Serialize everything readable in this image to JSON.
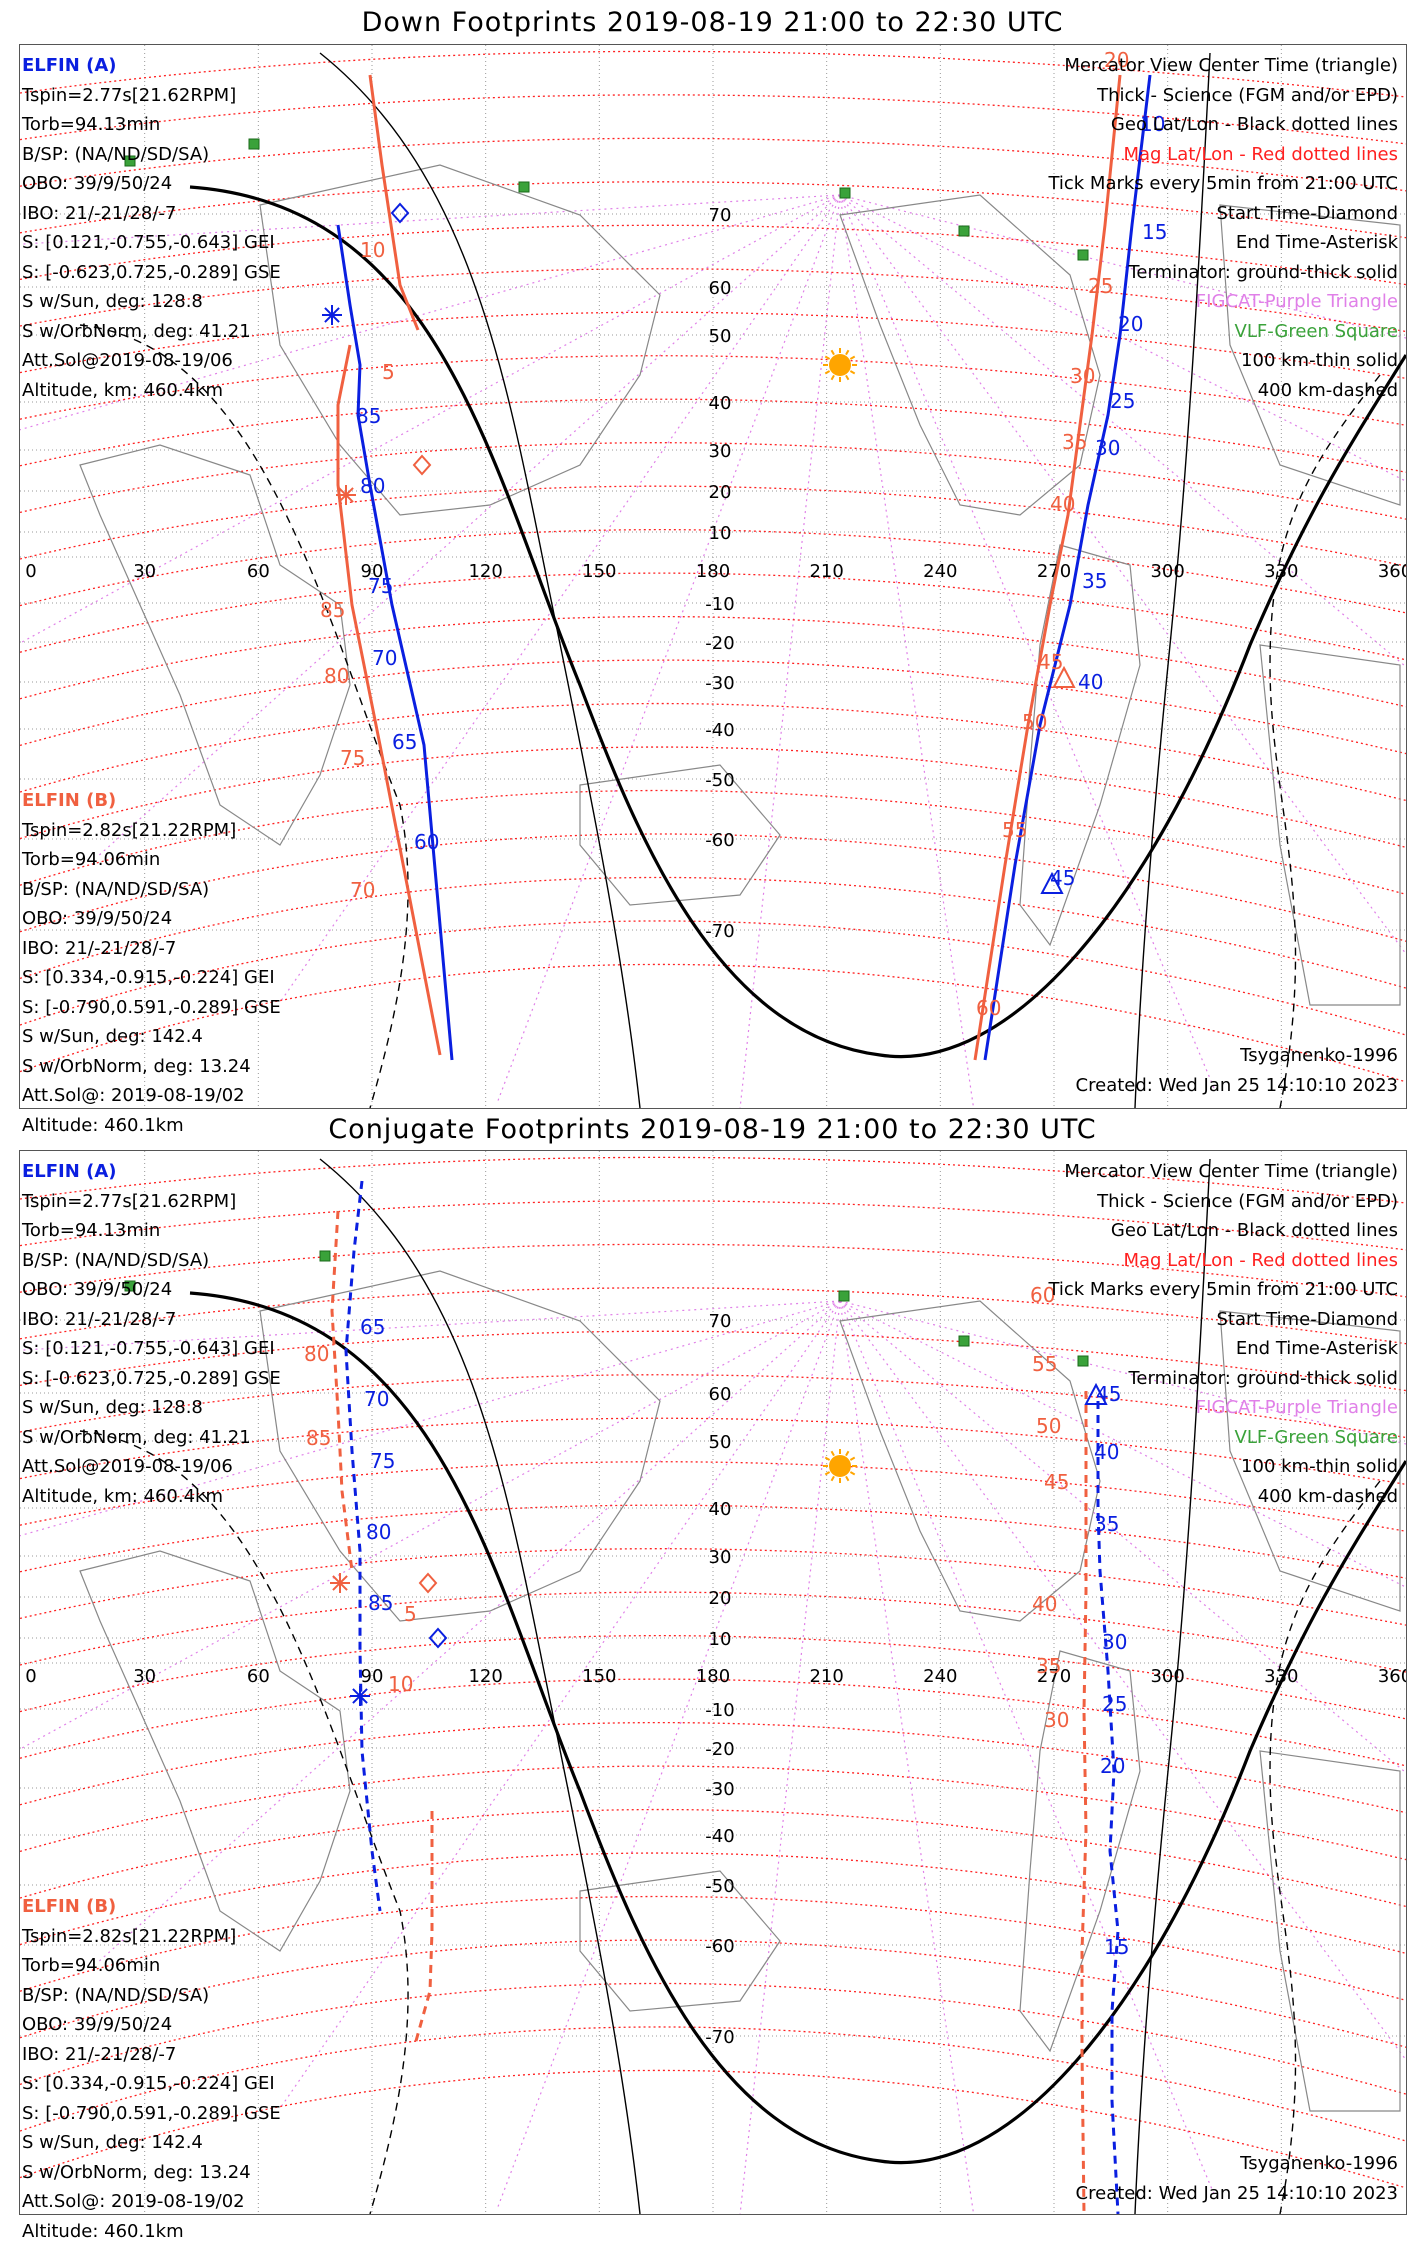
{
  "panels": [
    {
      "title": "Down Footprints 2019-08-19 21:00 to 22:30 UTC",
      "elfin_a": [
        "ELFIN (A)",
        "Tspin=2.77s[21.62RPM]",
        "Torb=94.13min",
        "B/SP: (NA/ND/SD/SA)",
        "OBO: 39/9/50/24",
        "IBO: 21/-21/28/-7",
        "S: [0.121,-0.755,-0.643] GEI",
        "S: [-0.623,0.725,-0.289] GSE",
        "S w/Sun, deg: 128.8",
        "S w/OrbNorm, deg: 41.21",
        "Att.Sol@2019-08-19/06",
        "Altitude, km: 460.4km"
      ],
      "elfin_b": [
        "ELFIN (B)",
        "Tspin=2.82s[21.22RPM]",
        "Torb=94.06min",
        "B/SP: (NA/ND/SD/SA)",
        "OBO: 39/9/50/24",
        "IBO: 21/-21/28/-7",
        "S: [0.334,-0.915,-0.224] GEI",
        "S: [-0.790,0.591,-0.289] GSE",
        "S w/Sun, deg: 142.4",
        "S w/OrbNorm, deg: 13.24",
        "Att.Sol@: 2019-08-19/02",
        "Altitude: 460.1km"
      ],
      "legend": [
        "Mercator View Center Time (triangle)",
        "Thick - Science (FGM and/or EPD)",
        "Geo Lat/Lon - Black dotted lines",
        "Mag Lat/Lon - Red dotted lines",
        "Tick Marks every 5min from 21:00 UTC",
        "Start Time-Diamond",
        "End Time-Asterisk",
        "Terminator: ground-thick solid",
        "FIGCAT-Purple Triangle",
        "VLF-Green Square",
        "100 km-thin solid",
        "400 km-dashed"
      ],
      "model": "Tsyganenko-1996",
      "created": "Created: Wed Jan 25 14:10:10 2023",
      "lon_labels": [
        "0",
        "30",
        "60",
        "90",
        "120",
        "150",
        "180",
        "210",
        "240",
        "270",
        "300",
        "330",
        "360"
      ],
      "lat_labels": [
        "70",
        "60",
        "50",
        "40",
        "30",
        "20",
        "10",
        "-10",
        "-20",
        "-30",
        "-40",
        "-50",
        "-60",
        "-70"
      ],
      "track_a_labels": [
        "10",
        "15",
        "20",
        "25",
        "30",
        "35",
        "40",
        "45",
        "60",
        "65",
        "70",
        "75",
        "80",
        "85"
      ],
      "track_b_labels": [
        "20",
        "25",
        "30",
        "35",
        "40",
        "45",
        "50",
        "55",
        "60",
        "5",
        "10",
        "70",
        "75",
        "80",
        "85"
      ]
    },
    {
      "title": "Conjugate Footprints 2019-08-19 21:00 to 22:30 UTC",
      "elfin_a": [
        "ELFIN (A)",
        "Tspin=2.77s[21.62RPM]",
        "Torb=94.13min",
        "B/SP: (NA/ND/SD/SA)",
        "OBO: 39/9/50/24",
        "IBO: 21/-21/28/-7",
        "S: [0.121,-0.755,-0.643] GEI",
        "S: [-0.623,0.725,-0.289] GSE",
        "S w/Sun, deg: 128.8",
        "S w/OrbNorm, deg: 41.21",
        "Att.Sol@2019-08-19/06",
        "Altitude, km: 460.4km"
      ],
      "elfin_b": [
        "ELFIN (B)",
        "Tspin=2.82s[21.22RPM]",
        "Torb=94.06min",
        "B/SP: (NA/ND/SD/SA)",
        "OBO: 39/9/50/24",
        "IBO: 21/-21/28/-7",
        "S: [0.334,-0.915,-0.224] GEI",
        "S: [-0.790,0.591,-0.289] GSE",
        "S w/Sun, deg: 142.4",
        "S w/OrbNorm, deg: 13.24",
        "Att.Sol@: 2019-08-19/02",
        "Altitude: 460.1km"
      ],
      "legend": [
        "Mercator View Center Time (triangle)",
        "Thick - Science (FGM and/or EPD)",
        "Geo Lat/Lon - Black dotted lines",
        "Mag Lat/Lon - Red dotted lines",
        "Tick Marks every 5min from 21:00 UTC",
        "Start Time-Diamond",
        "End Time-Asterisk",
        "Terminator: ground-thick solid",
        "FIGCAT-Purple Triangle",
        "VLF-Green Square",
        "100 km-thin solid",
        "400 km-dashed"
      ],
      "model": "Tsyganenko-1996",
      "created": "Created: Wed Jan 25 14:10:10 2023",
      "lon_labels": [
        "0",
        "30",
        "60",
        "90",
        "120",
        "150",
        "180",
        "210",
        "240",
        "270",
        "300",
        "330",
        "360"
      ],
      "lat_labels": [
        "70",
        "60",
        "50",
        "40",
        "30",
        "20",
        "10",
        "-10",
        "-20",
        "-30",
        "-40",
        "-50",
        "-60",
        "-70"
      ],
      "track_a_labels": [
        "65",
        "70",
        "75",
        "80",
        "85",
        "45",
        "40",
        "35",
        "30",
        "25",
        "20",
        "15"
      ],
      "track_b_labels": [
        "5",
        "10",
        "80",
        "85",
        "60",
        "55",
        "50",
        "45",
        "40",
        "35",
        "30"
      ]
    }
  ],
  "colors": {
    "elfin_a": "#0a1fe0",
    "elfin_b": "#f06040",
    "mag_grid": "#ff2020",
    "geo_dots": "#e080e8",
    "vlf": "#3aa23a",
    "sun": "#ffa500"
  },
  "icons": [
    "sun-icon",
    "diamond-start-icon",
    "asterisk-end-icon",
    "triangle-center-icon",
    "vlf-square-icon"
  ]
}
